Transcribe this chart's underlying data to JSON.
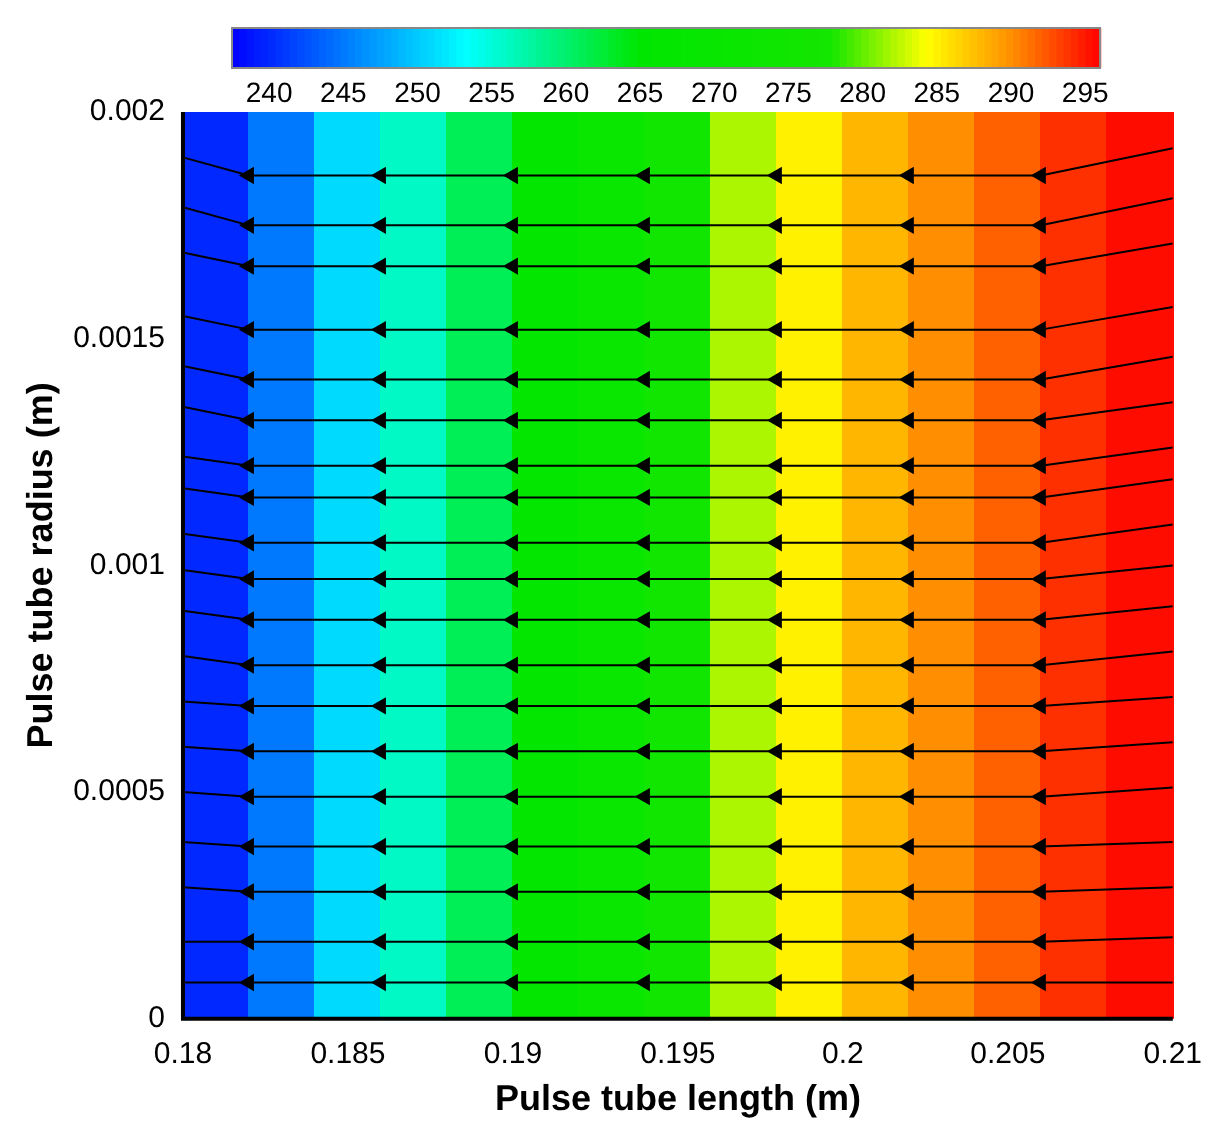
{
  "chart_data": {
    "type": "heatmap",
    "xlabel": "Pulse tube length (m)",
    "ylabel": "Pulse tube radius (m)",
    "x": [
      0.181,
      0.183,
      0.185,
      0.187,
      0.189,
      0.191,
      0.193,
      0.195,
      0.197,
      0.199,
      0.201,
      0.203,
      0.205,
      0.207,
      0.209
    ],
    "cells": [
      [
        240,
        245,
        251,
        256,
        261,
        266,
        271,
        276,
        282,
        285,
        288,
        290,
        292,
        294,
        295.5
      ]
    ],
    "clim": [
      237.5,
      296
    ],
    "cticks": [
      240,
      245,
      250,
      255,
      260,
      265,
      270,
      275,
      280,
      285,
      290,
      295
    ],
    "xlim": [
      0.18,
      0.21
    ],
    "xticks": [
      0.18,
      0.185,
      0.19,
      0.195,
      0.2,
      0.205,
      0.21
    ],
    "ylim": [
      0,
      0.002
    ],
    "yticks": [
      0,
      0.0005,
      0.001,
      0.0015,
      0.002
    ],
    "legend": false,
    "marker": "triangle",
    "line_style": "solid",
    "series": [
      {
        "type": "line",
        "color": "#000000",
        "x": [
          0.18,
          0.182,
          0.186,
          0.19,
          0.194,
          0.198,
          0.202,
          0.206,
          0.21
        ],
        "values": [
          0.0019,
          0.00186,
          0.00186,
          0.00186,
          0.00186,
          0.00186,
          0.00186,
          0.00186,
          0.00192
        ]
      },
      {
        "type": "line",
        "color": "#000000",
        "x": [
          0.18,
          0.182,
          0.186,
          0.19,
          0.194,
          0.198,
          0.202,
          0.206,
          0.21
        ],
        "values": [
          0.00179,
          0.00175,
          0.00175,
          0.00175,
          0.00175,
          0.00175,
          0.00175,
          0.00175,
          0.00181
        ]
      },
      {
        "type": "line",
        "color": "#000000",
        "x": [
          0.18,
          0.182,
          0.186,
          0.19,
          0.194,
          0.198,
          0.202,
          0.206,
          0.21
        ],
        "values": [
          0.00169,
          0.00166,
          0.00166,
          0.00166,
          0.00166,
          0.00166,
          0.00166,
          0.00166,
          0.00171
        ]
      },
      {
        "type": "line",
        "color": "#000000",
        "x": [
          0.18,
          0.182,
          0.186,
          0.19,
          0.194,
          0.198,
          0.202,
          0.206,
          0.21
        ],
        "values": [
          0.00155,
          0.00152,
          0.00152,
          0.00152,
          0.00152,
          0.00152,
          0.00152,
          0.00152,
          0.00157
        ]
      },
      {
        "type": "line",
        "color": "#000000",
        "x": [
          0.18,
          0.182,
          0.186,
          0.19,
          0.194,
          0.198,
          0.202,
          0.206,
          0.21
        ],
        "values": [
          0.00144,
          0.00141,
          0.00141,
          0.00141,
          0.00141,
          0.00141,
          0.00141,
          0.00141,
          0.00146
        ]
      },
      {
        "type": "line",
        "color": "#000000",
        "x": [
          0.18,
          0.182,
          0.186,
          0.19,
          0.194,
          0.198,
          0.202,
          0.206,
          0.21
        ],
        "values": [
          0.00135,
          0.00132,
          0.00132,
          0.00132,
          0.00132,
          0.00132,
          0.00132,
          0.00132,
          0.00136
        ]
      },
      {
        "type": "line",
        "color": "#000000",
        "x": [
          0.18,
          0.182,
          0.186,
          0.19,
          0.194,
          0.198,
          0.202,
          0.206,
          0.21
        ],
        "values": [
          0.00124,
          0.00122,
          0.00122,
          0.00122,
          0.00122,
          0.00122,
          0.00122,
          0.00122,
          0.00126
        ]
      },
      {
        "type": "line",
        "color": "#000000",
        "x": [
          0.18,
          0.182,
          0.186,
          0.19,
          0.194,
          0.198,
          0.202,
          0.206,
          0.21
        ],
        "values": [
          0.00117,
          0.00115,
          0.00115,
          0.00115,
          0.00115,
          0.00115,
          0.00115,
          0.00115,
          0.00119
        ]
      },
      {
        "type": "line",
        "color": "#000000",
        "x": [
          0.18,
          0.182,
          0.186,
          0.19,
          0.194,
          0.198,
          0.202,
          0.206,
          0.21
        ],
        "values": [
          0.00107,
          0.00105,
          0.00105,
          0.00105,
          0.00105,
          0.00105,
          0.00105,
          0.00105,
          0.00109
        ]
      },
      {
        "type": "line",
        "color": "#000000",
        "x": [
          0.18,
          0.182,
          0.186,
          0.19,
          0.194,
          0.198,
          0.202,
          0.206,
          0.21
        ],
        "values": [
          0.00099,
          0.00097,
          0.00097,
          0.00097,
          0.00097,
          0.00097,
          0.00097,
          0.00097,
          0.001
        ]
      },
      {
        "type": "line",
        "color": "#000000",
        "x": [
          0.18,
          0.182,
          0.186,
          0.19,
          0.194,
          0.198,
          0.202,
          0.206,
          0.21
        ],
        "values": [
          0.0009,
          0.00088,
          0.00088,
          0.00088,
          0.00088,
          0.00088,
          0.00088,
          0.00088,
          0.00091
        ]
      },
      {
        "type": "line",
        "color": "#000000",
        "x": [
          0.18,
          0.182,
          0.186,
          0.19,
          0.194,
          0.198,
          0.202,
          0.206,
          0.21
        ],
        "values": [
          0.0008,
          0.00078,
          0.00078,
          0.00078,
          0.00078,
          0.00078,
          0.00078,
          0.00078,
          0.00081
        ]
      },
      {
        "type": "line",
        "color": "#000000",
        "x": [
          0.18,
          0.182,
          0.186,
          0.19,
          0.194,
          0.198,
          0.202,
          0.206,
          0.21
        ],
        "values": [
          0.0007,
          0.00069,
          0.00069,
          0.00069,
          0.00069,
          0.00069,
          0.00069,
          0.00069,
          0.00071
        ]
      },
      {
        "type": "line",
        "color": "#000000",
        "x": [
          0.18,
          0.182,
          0.186,
          0.19,
          0.194,
          0.198,
          0.202,
          0.206,
          0.21
        ],
        "values": [
          0.0006,
          0.00059,
          0.00059,
          0.00059,
          0.00059,
          0.00059,
          0.00059,
          0.00059,
          0.00061
        ]
      },
      {
        "type": "line",
        "color": "#000000",
        "x": [
          0.18,
          0.182,
          0.186,
          0.19,
          0.194,
          0.198,
          0.202,
          0.206,
          0.21
        ],
        "values": [
          0.0005,
          0.00049,
          0.00049,
          0.00049,
          0.00049,
          0.00049,
          0.00049,
          0.00049,
          0.00051
        ]
      },
      {
        "type": "line",
        "color": "#000000",
        "x": [
          0.18,
          0.182,
          0.186,
          0.19,
          0.194,
          0.198,
          0.202,
          0.206,
          0.21
        ],
        "values": [
          0.00039,
          0.00038,
          0.00038,
          0.00038,
          0.00038,
          0.00038,
          0.00038,
          0.00038,
          0.00039
        ]
      },
      {
        "type": "line",
        "color": "#000000",
        "x": [
          0.18,
          0.182,
          0.186,
          0.19,
          0.194,
          0.198,
          0.202,
          0.206,
          0.21
        ],
        "values": [
          0.00029,
          0.00028,
          0.00028,
          0.00028,
          0.00028,
          0.00028,
          0.00028,
          0.00028,
          0.00029
        ]
      },
      {
        "type": "line",
        "color": "#000000",
        "x": [
          0.18,
          0.182,
          0.186,
          0.19,
          0.194,
          0.198,
          0.202,
          0.206,
          0.21
        ],
        "values": [
          0.00017,
          0.00017,
          0.00017,
          0.00017,
          0.00017,
          0.00017,
          0.00017,
          0.00017,
          0.00018
        ]
      },
      {
        "type": "line",
        "color": "#000000",
        "x": [
          0.18,
          0.182,
          0.186,
          0.19,
          0.194,
          0.198,
          0.202,
          0.206,
          0.21
        ],
        "values": [
          8e-05,
          8e-05,
          8e-05,
          8e-05,
          8e-05,
          8e-05,
          8e-05,
          8e-05,
          8e-05
        ]
      }
    ]
  }
}
